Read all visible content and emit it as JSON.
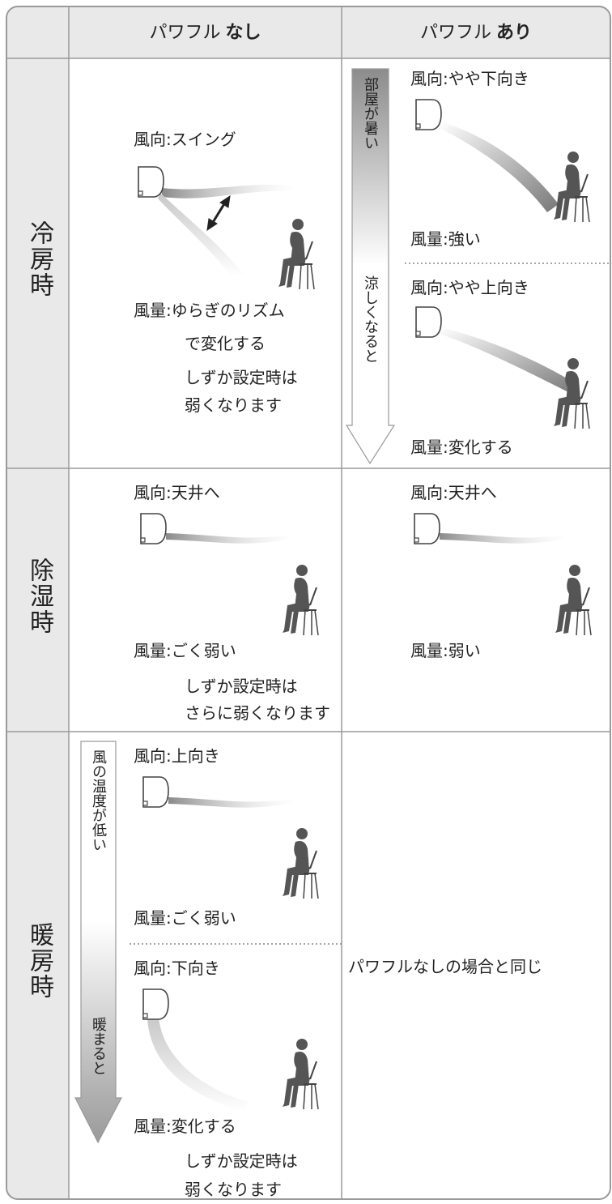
{
  "header": {
    "columns": [
      {
        "text": "パワフル",
        "emphasis": "なし"
      },
      {
        "text": "パワフル",
        "emphasis": "あり"
      }
    ]
  },
  "rows": [
    {
      "label": "冷房時",
      "without": {
        "direction": "風向:スイング",
        "volume": [
          "風量:ゆらぎのリズム",
          "で変化する"
        ],
        "note": [
          "しずか設定時は",
          "弱くなります"
        ]
      },
      "with": {
        "arrow_start": "部屋が暑い",
        "arrow_end": "涼しくなると",
        "settings": [
          {
            "direction": "風向:やや下向き",
            "volume": "風量:強い"
          },
          {
            "direction": "風向:やや上向き",
            "volume": "風量:変化する"
          }
        ]
      }
    },
    {
      "label": "除湿時",
      "without": {
        "direction": "風向:天井へ",
        "volume": [
          "風量:ごく弱い"
        ],
        "note": [
          "しずか設定時は",
          "さらに弱くなります"
        ]
      },
      "with": {
        "direction": "風向:天井へ",
        "volume": [
          "風量:弱い"
        ]
      }
    },
    {
      "label": "暖房時",
      "without": {
        "arrow_start": "風の温度が低い",
        "arrow_end": "暖まると",
        "settings": [
          {
            "direction": "風向:上向き",
            "volume": "風量:ごく弱い"
          },
          {
            "direction": "風向:下向き",
            "volume": "風量:変化する",
            "note": [
              "しずか設定時は",
              "弱くなります"
            ]
          }
        ]
      },
      "with": {
        "text": "パワフルなしの場合と同じ"
      }
    }
  ]
}
